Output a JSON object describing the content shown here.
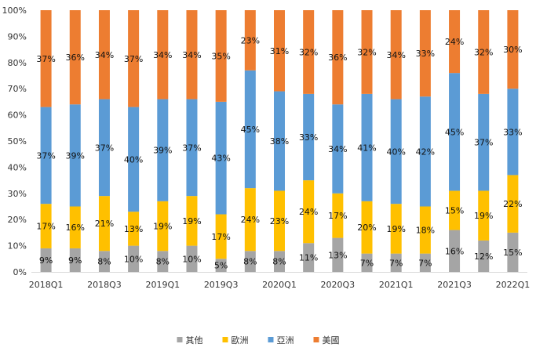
{
  "chart_data": {
    "type": "bar",
    "stacked": true,
    "percent_stacked": true,
    "categories": [
      "2018Q1",
      "2018Q2",
      "2018Q3",
      "2018Q4",
      "2019Q1",
      "2019Q2",
      "2019Q3",
      "2019Q4",
      "2020Q1",
      "2020Q2",
      "2020Q3",
      "2020Q4",
      "2021Q1",
      "2021Q2",
      "2021Q3",
      "2021Q4",
      "2022Q1"
    ],
    "x_tick_labels": [
      "2018Q1",
      "2018Q3",
      "2019Q1",
      "2019Q3",
      "2020Q1",
      "2020Q3",
      "2021Q1",
      "2021Q3",
      "2022Q1"
    ],
    "series": [
      {
        "name": "其他",
        "color": "#a5a5a5",
        "values": [
          9,
          9,
          8,
          10,
          8,
          10,
          5,
          8,
          8,
          11,
          13,
          7,
          7,
          7,
          16,
          12,
          15
        ]
      },
      {
        "name": "歐洲",
        "color": "#ffc000",
        "values": [
          17,
          16,
          21,
          13,
          19,
          19,
          17,
          24,
          23,
          24,
          17,
          20,
          19,
          18,
          15,
          19,
          22
        ]
      },
      {
        "name": "亞洲",
        "color": "#5b9bd5",
        "values": [
          37,
          39,
          37,
          40,
          39,
          37,
          43,
          45,
          38,
          33,
          34,
          41,
          40,
          42,
          45,
          37,
          33
        ]
      },
      {
        "name": "美國",
        "color": "#ed7d31",
        "values": [
          37,
          36,
          34,
          37,
          34,
          34,
          35,
          23,
          31,
          32,
          36,
          32,
          34,
          33,
          24,
          32,
          30
        ]
      }
    ],
    "y_tick_labels": [
      "0%",
      "10%",
      "20%",
      "30%",
      "40%",
      "50%",
      "60%",
      "70%",
      "80%",
      "90%",
      "100%"
    ],
    "ylim": [
      0,
      100
    ],
    "grid": false,
    "legend_position": "bottom",
    "title": "",
    "xlabel": "",
    "ylabel": ""
  }
}
